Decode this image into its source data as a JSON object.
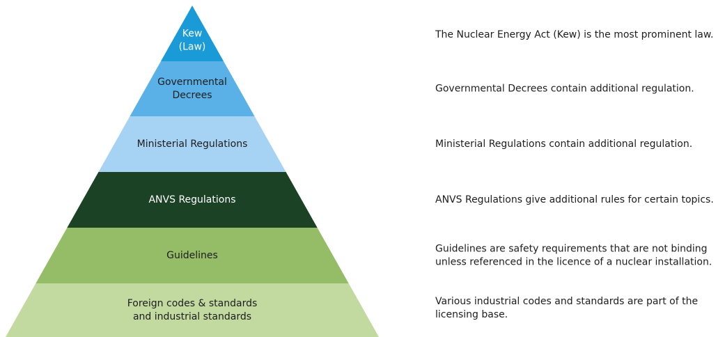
{
  "levels": [
    {
      "label": [
        "Kew",
        "(Law)"
      ],
      "description": [
        "The Nuclear Energy Act (Kew) is the most prominent law."
      ]
    },
    {
      "label": [
        "Governmental",
        "Decrees"
      ],
      "description": [
        "Governmental Decrees contain additional regulation."
      ]
    },
    {
      "label": [
        "Ministerial Regulations"
      ],
      "description": [
        "Ministerial Regulations contain additional regulation."
      ]
    },
    {
      "label": [
        "ANVS Regulations"
      ],
      "description": [
        "ANVS Regulations give additional rules for certain topics."
      ]
    },
    {
      "label": [
        "Guidelines"
      ],
      "description": [
        "Guidelines are safety requirements that are not binding",
        "unless referenced in the licence of a nuclear installation."
      ]
    },
    {
      "label": [
        "Foreign codes & standards",
        "and industrial standards"
      ],
      "description": [
        "Various industrial codes and standards are part of the",
        "licensing base."
      ]
    }
  ]
}
